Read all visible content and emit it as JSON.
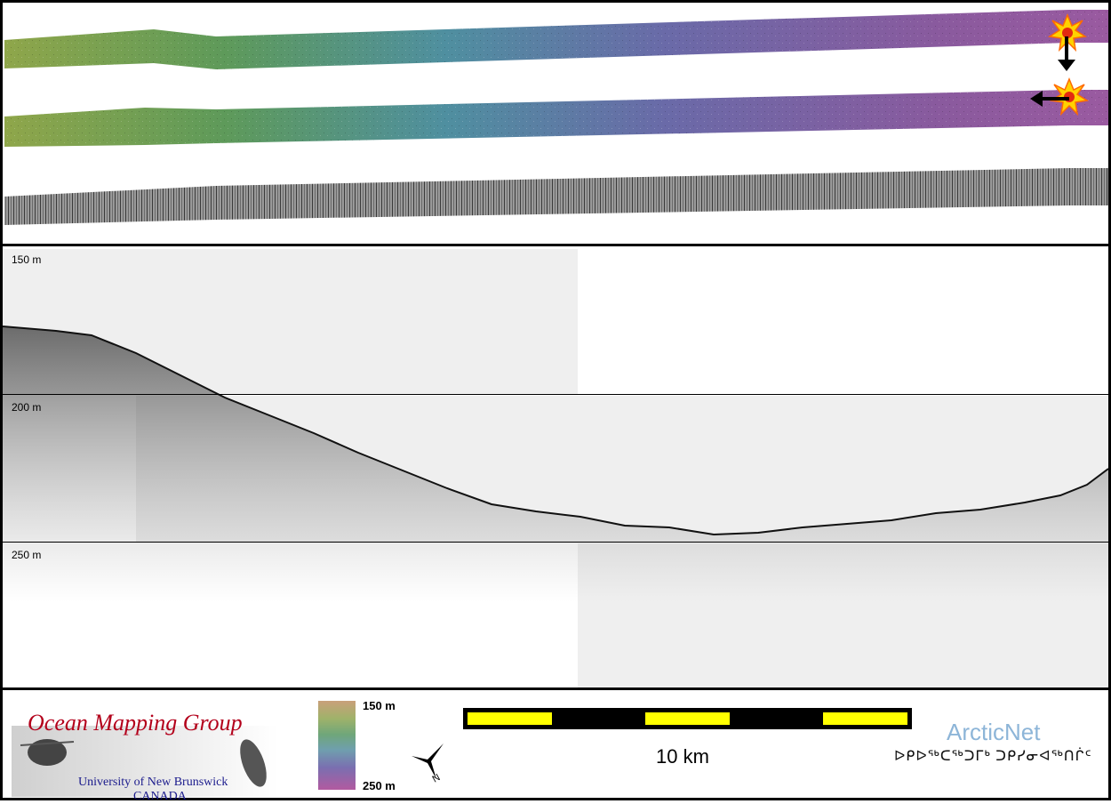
{
  "depth_labels": [
    "150 m",
    "200 m",
    "250 m"
  ],
  "colorbar": {
    "top_label": "150 m",
    "bottom_label": "250 m"
  },
  "scale": {
    "label": "10 km"
  },
  "logos": {
    "omg_title": "Ocean Mapping Group",
    "omg_subtitle_1": "University of New Brunswick",
    "omg_subtitle_2": "CANADA",
    "arcticnet": "ArcticNet",
    "arcticnet_syllabics": "ᐅᑭᐅᖅᑕᖅᑐᒥᒃ ᑐᑭᓯᓂᐊᖅᑎᒌᑦ"
  },
  "icons": {
    "sun_marker": "sun-marker-icon",
    "north_arrow": "north-arrow-icon",
    "arrow": "arrow-icon"
  },
  "colors": {
    "scale_yellow": "#ffff00",
    "omg_red": "#b3001b",
    "arcticnet_blue": "#8db5d8"
  }
}
